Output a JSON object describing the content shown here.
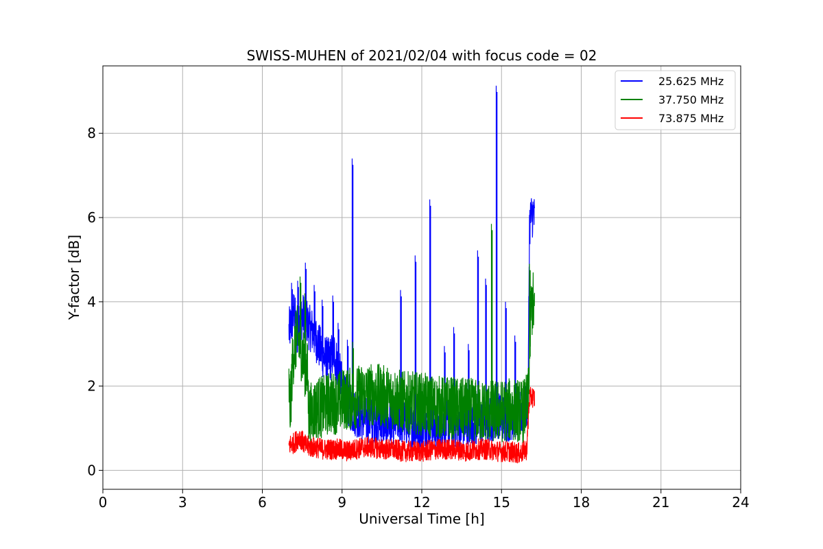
{
  "chart_data": {
    "type": "line",
    "title": "SWISS-MUHEN of 2021/02/04 with focus code = 02",
    "xlabel": "Universal Time [h]",
    "ylabel": "Y-factor [dB]",
    "xlim": [
      0,
      24
    ],
    "ylim": [
      -0.45,
      9.6
    ],
    "xticks": [
      0,
      3,
      6,
      9,
      12,
      15,
      18,
      21,
      24
    ],
    "yticks": [
      0,
      2,
      4,
      6,
      8
    ],
    "grid": true,
    "legend_position": "top-right",
    "series": [
      {
        "name": "25.625 MHz",
        "color": "#0000ff",
        "x": [
          7.0,
          7.1,
          7.2,
          7.3,
          7.45,
          7.6,
          7.75,
          7.9,
          8.1,
          8.3,
          8.5,
          8.7,
          8.9,
          9.1,
          9.4,
          9.6,
          9.9,
          10.3,
          10.7,
          11.1,
          11.5,
          11.8,
          12.1,
          12.3,
          12.6,
          12.9,
          13.2,
          13.5,
          13.8,
          14.1,
          14.4,
          14.6,
          14.8,
          15.0,
          15.2,
          15.5,
          15.8,
          16.0,
          16.05,
          16.1,
          16.2,
          16.25
        ],
        "y": [
          3.3,
          3.5,
          3.8,
          3.2,
          3.6,
          3.7,
          3.4,
          3.3,
          3.0,
          2.7,
          2.6,
          2.8,
          2.3,
          1.7,
          1.4,
          1.3,
          1.2,
          1.2,
          1.1,
          1.2,
          1.1,
          1.0,
          1.1,
          1.1,
          1.0,
          1.1,
          1.1,
          1.0,
          1.1,
          1.1,
          1.2,
          1.2,
          1.3,
          1.3,
          1.2,
          1.3,
          1.4,
          1.6,
          5.8,
          6.0,
          6.1,
          5.9
        ],
        "peaks": [
          {
            "x": 7.1,
            "y": 4.45
          },
          {
            "x": 7.33,
            "y": 4.5
          },
          {
            "x": 7.62,
            "y": 4.93
          },
          {
            "x": 7.95,
            "y": 4.4
          },
          {
            "x": 8.25,
            "y": 4.05
          },
          {
            "x": 8.65,
            "y": 4.15
          },
          {
            "x": 8.85,
            "y": 3.5
          },
          {
            "x": 9.2,
            "y": 3.1
          },
          {
            "x": 9.38,
            "y": 7.4
          },
          {
            "x": 11.2,
            "y": 4.28
          },
          {
            "x": 11.75,
            "y": 5.1
          },
          {
            "x": 12.3,
            "y": 6.43
          },
          {
            "x": 12.85,
            "y": 2.95
          },
          {
            "x": 13.2,
            "y": 3.4
          },
          {
            "x": 13.75,
            "y": 3.0
          },
          {
            "x": 14.1,
            "y": 5.22
          },
          {
            "x": 14.4,
            "y": 4.55
          },
          {
            "x": 14.8,
            "y": 9.13
          },
          {
            "x": 15.15,
            "y": 4.0
          },
          {
            "x": 15.5,
            "y": 3.2
          }
        ]
      },
      {
        "name": "37.750 MHz",
        "color": "#008000",
        "x": [
          7.0,
          7.05,
          7.15,
          7.3,
          7.45,
          7.6,
          7.7,
          7.75,
          7.9,
          8.1,
          8.3,
          8.5,
          8.8,
          9.1,
          9.4,
          9.8,
          10.2,
          10.6,
          11.0,
          11.4,
          11.8,
          12.2,
          12.6,
          13.0,
          13.4,
          13.8,
          14.2,
          14.6,
          15.0,
          15.4,
          15.8,
          16.0,
          16.1,
          16.2,
          16.25
        ],
        "y": [
          2.0,
          1.4,
          2.7,
          3.2,
          2.9,
          2.5,
          2.3,
          1.3,
          1.4,
          1.5,
          1.5,
          1.6,
          1.6,
          1.7,
          1.7,
          1.8,
          1.8,
          1.75,
          1.7,
          1.6,
          1.6,
          1.55,
          1.5,
          1.5,
          1.45,
          1.45,
          1.4,
          1.4,
          1.4,
          1.45,
          1.4,
          1.6,
          3.8,
          4.0,
          3.5
        ],
        "peaks": [
          {
            "x": 7.42,
            "y": 4.6
          },
          {
            "x": 7.6,
            "y": 4.2
          },
          {
            "x": 9.4,
            "y": 3.05
          },
          {
            "x": 14.62,
            "y": 5.85
          },
          {
            "x": 16.05,
            "y": 4.9
          }
        ]
      },
      {
        "name": "73.875 MHz",
        "color": "#ff0000",
        "x": [
          7.0,
          7.2,
          7.4,
          7.6,
          7.8,
          8.0,
          8.3,
          8.6,
          8.9,
          9.2,
          9.5,
          9.8,
          10.1,
          10.5,
          10.9,
          11.3,
          11.7,
          12.1,
          12.5,
          12.9,
          13.3,
          13.7,
          14.1,
          14.5,
          14.9,
          15.3,
          15.7,
          15.95,
          16.05,
          16.15,
          16.25
        ],
        "y": [
          0.6,
          0.65,
          0.8,
          0.6,
          0.55,
          0.55,
          0.5,
          0.5,
          0.5,
          0.45,
          0.5,
          0.55,
          0.55,
          0.5,
          0.5,
          0.45,
          0.45,
          0.45,
          0.5,
          0.5,
          0.5,
          0.45,
          0.5,
          0.5,
          0.45,
          0.45,
          0.4,
          0.5,
          1.7,
          1.75,
          1.7
        ]
      }
    ]
  }
}
